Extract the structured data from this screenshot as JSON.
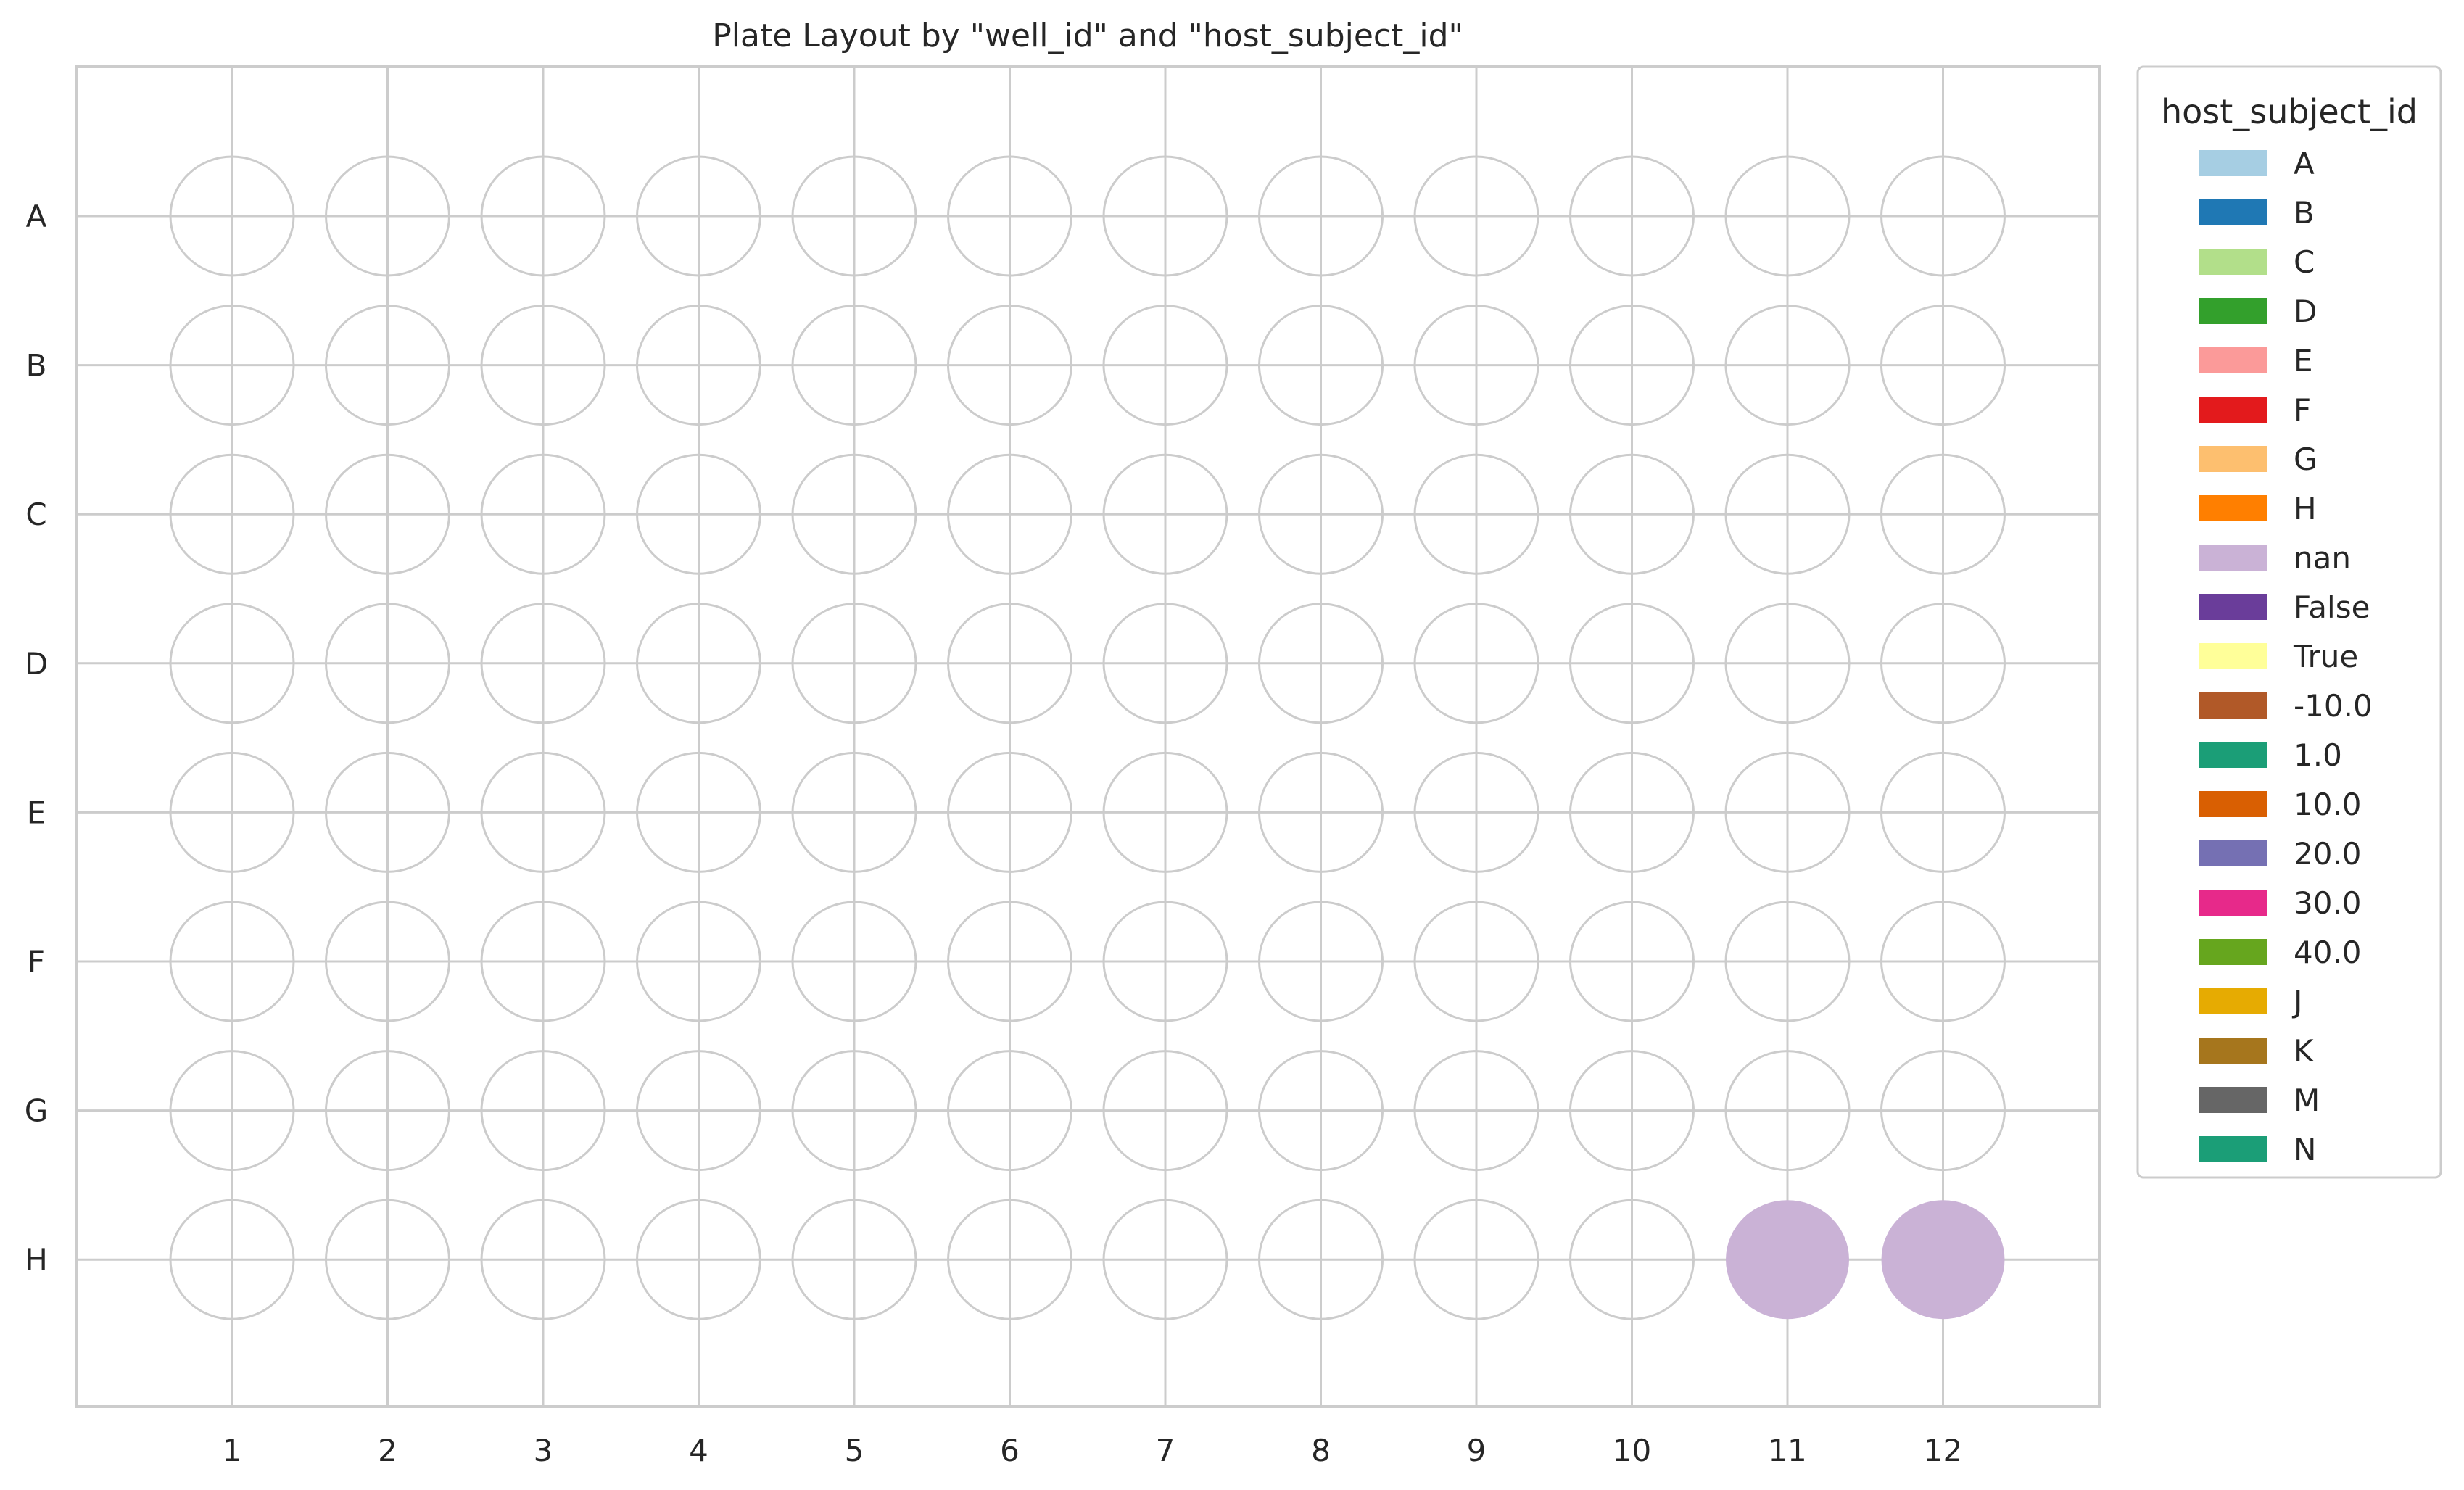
{
  "chart_data": {
    "type": "scatter",
    "title": "Plate Layout by \"well_id\" and \"host_subject_id\"",
    "xlabel": "",
    "ylabel": "",
    "x_ticks": [
      "1",
      "2",
      "3",
      "4",
      "5",
      "6",
      "7",
      "8",
      "9",
      "10",
      "11",
      "12"
    ],
    "y_ticks": [
      "A",
      "B",
      "C",
      "D",
      "E",
      "F",
      "G",
      "H"
    ],
    "grid": true,
    "legend": {
      "title": "host_subject_id",
      "placement": "outside-right",
      "entries": [
        {
          "label": "A",
          "color": "#a6cee3"
        },
        {
          "label": "B",
          "color": "#1f78b4"
        },
        {
          "label": "C",
          "color": "#b2df8a"
        },
        {
          "label": "D",
          "color": "#33a02c"
        },
        {
          "label": "E",
          "color": "#fb9a99"
        },
        {
          "label": "F",
          "color": "#e31a1c"
        },
        {
          "label": "G",
          "color": "#fdbf6f"
        },
        {
          "label": "H",
          "color": "#ff7f00"
        },
        {
          "label": "nan",
          "color": "#cab2d6"
        },
        {
          "label": "False",
          "color": "#6a3d9a"
        },
        {
          "label": "True",
          "color": "#ffff99"
        },
        {
          "label": "-10.0",
          "color": "#b15928"
        },
        {
          "label": "1.0",
          "color": "#1b9e77"
        },
        {
          "label": "10.0",
          "color": "#d95f02"
        },
        {
          "label": "20.0",
          "color": "#7570b3"
        },
        {
          "label": "30.0",
          "color": "#e7298a"
        },
        {
          "label": "40.0",
          "color": "#66a61e"
        },
        {
          "label": "J",
          "color": "#e6ab02"
        },
        {
          "label": "K",
          "color": "#a6761d"
        },
        {
          "label": "M",
          "color": "#666666"
        },
        {
          "label": "N",
          "color": "#1b9e77"
        }
      ]
    },
    "filled_wells": [
      {
        "row": "H",
        "col": "11",
        "label": "nan",
        "color": "#cab2d6"
      },
      {
        "row": "H",
        "col": "12",
        "label": "nan",
        "color": "#cab2d6"
      }
    ],
    "empty_well_stroke": "#cccccc",
    "grid_color": "#cccccc",
    "frame_color": "#cccccc"
  }
}
